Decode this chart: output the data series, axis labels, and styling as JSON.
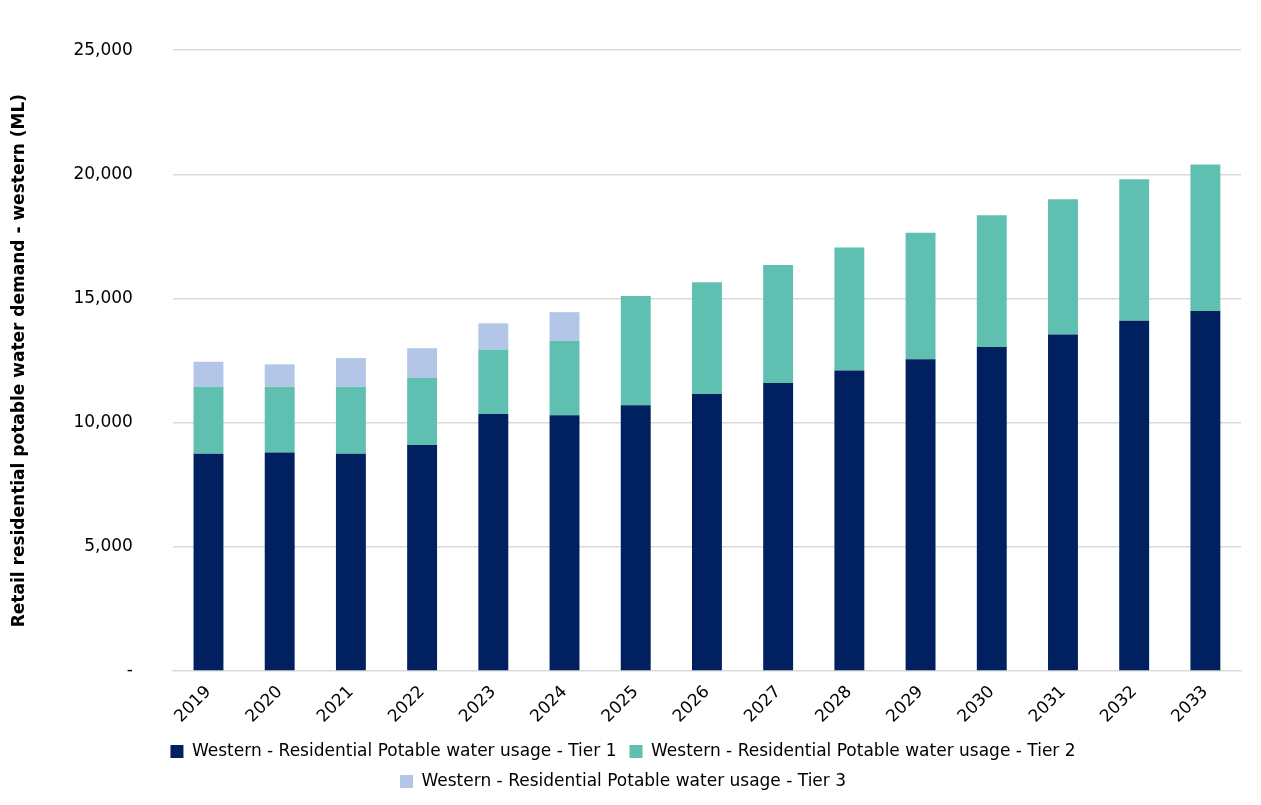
{
  "chart_data": {
    "type": "bar",
    "stacked": true,
    "ylabel": "Retail residential potable water demand - western (ML)",
    "categories": [
      "2019",
      "2020",
      "2021",
      "2022",
      "2023",
      "2024",
      "2025",
      "2026",
      "2027",
      "2028",
      "2029",
      "2030",
      "2031",
      "2032",
      "2033"
    ],
    "series": [
      {
        "name": "Western - Residential Potable water usage - Tier 1",
        "color": "#002060",
        "values": [
          8750,
          8800,
          8750,
          9100,
          10350,
          10300,
          10700,
          11150,
          11600,
          12100,
          12550,
          13050,
          13550,
          14100,
          14500
        ]
      },
      {
        "name": "Western - Residential Potable water usage - Tier 2",
        "color": "#5fbfb0",
        "values": [
          2700,
          2650,
          2700,
          2700,
          2600,
          3000,
          4400,
          4500,
          4750,
          4950,
          5100,
          5300,
          5450,
          5700,
          5900
        ]
      },
      {
        "name": "Western - Residential Potable water usage - Tier 3",
        "color": "#b4c6e7",
        "values": [
          1000,
          900,
          1150,
          1200,
          1050,
          1150,
          null,
          null,
          null,
          null,
          null,
          null,
          null,
          null,
          null
        ]
      }
    ],
    "ylim": [
      0,
      25000
    ],
    "yticks": [
      {
        "value": 0,
        "label": "-"
      },
      {
        "value": 5000,
        "label": "5,000"
      },
      {
        "value": 10000,
        "label": "10,000"
      },
      {
        "value": 15000,
        "label": "15,000"
      },
      {
        "value": 20000,
        "label": "20,000"
      },
      {
        "value": 25000,
        "label": "25,000"
      }
    ],
    "grid": "y",
    "legend": "bottom"
  }
}
